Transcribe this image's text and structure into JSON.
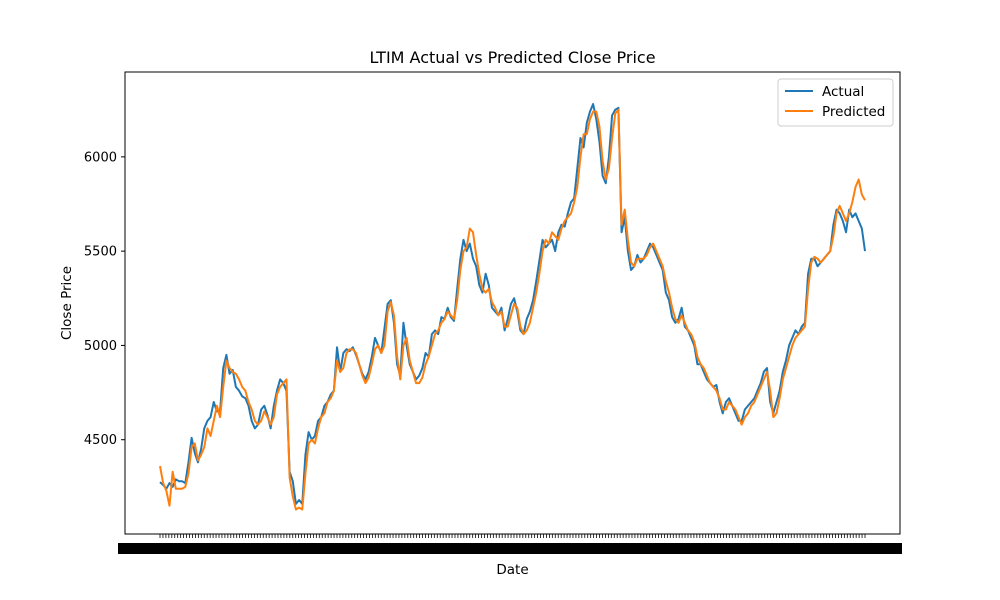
{
  "chart_data": {
    "type": "line",
    "title": "LTIM Actual vs Predicted Close Price",
    "xlabel": "Date",
    "ylabel": "Close Price",
    "ylim": [
      4000,
      6450
    ],
    "yticks": [
      4500,
      5000,
      5500,
      6000
    ],
    "grid": false,
    "legend_position": "top-right",
    "x_tick_count": 240,
    "series": [
      {
        "name": "Actual",
        "color": "#1f77b4",
        "values": [
          4275,
          4260,
          4240,
          4270,
          4250,
          4290,
          4280,
          4280,
          4270,
          4380,
          4510,
          4430,
          4380,
          4450,
          4560,
          4600,
          4620,
          4700,
          4650,
          4650,
          4880,
          4950,
          4850,
          4870,
          4780,
          4760,
          4730,
          4720,
          4680,
          4600,
          4560,
          4580,
          4660,
          4680,
          4630,
          4560,
          4680,
          4760,
          4820,
          4800,
          4760,
          4330,
          4280,
          4160,
          4180,
          4160,
          4420,
          4540,
          4500,
          4520,
          4600,
          4620,
          4680,
          4700,
          4740,
          4760,
          4990,
          4860,
          4960,
          4980,
          4970,
          4990,
          4950,
          4900,
          4850,
          4820,
          4860,
          4940,
          5040,
          5000,
          4960,
          5090,
          5220,
          5240,
          5120,
          4900,
          4840,
          5120,
          5000,
          4900,
          4860,
          4820,
          4840,
          4880,
          4960,
          4940,
          5060,
          5080,
          5060,
          5150,
          5140,
          5200,
          5150,
          5130,
          5300,
          5460,
          5560,
          5500,
          5540,
          5460,
          5420,
          5320,
          5280,
          5380,
          5320,
          5200,
          5180,
          5160,
          5200,
          5080,
          5140,
          5220,
          5250,
          5180,
          5080,
          5060,
          5140,
          5180,
          5240,
          5340,
          5450,
          5560,
          5520,
          5540,
          5560,
          5500,
          5600,
          5640,
          5630,
          5700,
          5760,
          5780,
          5940,
          6100,
          6050,
          6180,
          6240,
          6280,
          6200,
          6080,
          5900,
          5860,
          6000,
          6220,
          6250,
          6260,
          5600,
          5680,
          5500,
          5400,
          5420,
          5480,
          5440,
          5460,
          5500,
          5540,
          5520,
          5480,
          5440,
          5400,
          5280,
          5240,
          5150,
          5120,
          5140,
          5200,
          5100,
          5080,
          5040,
          5000,
          4900,
          4900,
          4860,
          4820,
          4800,
          4780,
          4790,
          4700,
          4640,
          4700,
          4720,
          4680,
          4640,
          4600,
          4600,
          4660,
          4680,
          4700,
          4720,
          4760,
          4800,
          4860,
          4880,
          4700,
          4640,
          4700,
          4760,
          4860,
          4920,
          5000,
          5040,
          5080,
          5060,
          5100,
          5120,
          5380,
          5460,
          5460,
          5420,
          5440,
          5460,
          5480,
          5500,
          5640,
          5720,
          5700,
          5660,
          5600,
          5720,
          5680,
          5700,
          5660,
          5620,
          5500
        ]
      },
      {
        "name": "Predicted",
        "color": "#ff7f0e",
        "values": [
          4360,
          4270,
          4230,
          4150,
          4330,
          4240,
          4240,
          4240,
          4250,
          4320,
          4460,
          4480,
          4390,
          4420,
          4460,
          4560,
          4520,
          4600,
          4680,
          4620,
          4780,
          4920,
          4880,
          4860,
          4850,
          4820,
          4780,
          4760,
          4700,
          4660,
          4600,
          4580,
          4600,
          4650,
          4620,
          4580,
          4620,
          4740,
          4780,
          4800,
          4820,
          4300,
          4200,
          4130,
          4140,
          4130,
          4320,
          4480,
          4500,
          4480,
          4560,
          4620,
          4640,
          4700,
          4720,
          4760,
          4920,
          4860,
          4880,
          4960,
          4980,
          4980,
          4960,
          4900,
          4840,
          4800,
          4830,
          4900,
          4980,
          5000,
          4960,
          5000,
          5180,
          5230,
          5160,
          4940,
          4820,
          5000,
          5040,
          4920,
          4860,
          4800,
          4800,
          4830,
          4900,
          4940,
          5000,
          5060,
          5080,
          5120,
          5140,
          5180,
          5160,
          5140,
          5240,
          5400,
          5500,
          5520,
          5620,
          5600,
          5480,
          5380,
          5300,
          5280,
          5300,
          5230,
          5200,
          5160,
          5180,
          5100,
          5100,
          5160,
          5220,
          5200,
          5100,
          5060,
          5080,
          5120,
          5200,
          5280,
          5380,
          5500,
          5560,
          5540,
          5600,
          5580,
          5560,
          5620,
          5660,
          5680,
          5700,
          5760,
          5840,
          6000,
          6120,
          6120,
          6200,
          6240,
          6240,
          6160,
          5980,
          5880,
          5940,
          6100,
          6230,
          6250,
          5640,
          5720,
          5560,
          5440,
          5420,
          5460,
          5460,
          5460,
          5480,
          5520,
          5540,
          5500,
          5460,
          5420,
          5340,
          5280,
          5200,
          5140,
          5120,
          5160,
          5120,
          5080,
          5060,
          5020,
          4940,
          4900,
          4880,
          4840,
          4800,
          4780,
          4760,
          4720,
          4660,
          4660,
          4700,
          4680,
          4660,
          4620,
          4580,
          4620,
          4640,
          4680,
          4700,
          4740,
          4780,
          4820,
          4860,
          4760,
          4620,
          4640,
          4720,
          4820,
          4880,
          4940,
          5000,
          5040,
          5060,
          5080,
          5100,
          5300,
          5440,
          5470,
          5460,
          5440,
          5460,
          5480,
          5500,
          5580,
          5700,
          5740,
          5700,
          5660,
          5700,
          5760,
          5840,
          5880,
          5800,
          5770
        ]
      }
    ]
  }
}
